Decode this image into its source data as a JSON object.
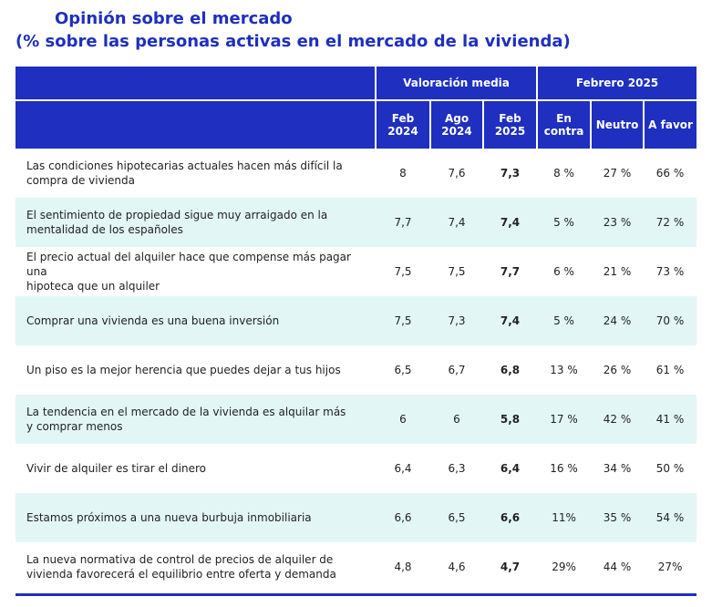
{
  "title": "Opinión sobre el mercado",
  "subtitle": "(% sobre las personas activas en el mercado de la vivienda)",
  "header": {
    "group_valoracion": "Valoración media",
    "group_febrero": "Febrero 2025",
    "columns": [
      {
        "line1": "Feb",
        "line2": "2024"
      },
      {
        "line1": "Ago",
        "line2": "2024"
      },
      {
        "line1": "Feb",
        "line2": "2025"
      },
      {
        "line1": "En",
        "line2": "contra"
      },
      {
        "line1": "Neutro",
        "line2": ""
      },
      {
        "line1": "A favor",
        "line2": ""
      }
    ]
  },
  "rows": [
    {
      "line1": "Las condiciones hipotecarias actuales hacen más difícil la",
      "line2": "compra de vivienda",
      "feb2024": "8",
      "ago2024": "7,6",
      "feb2025": "7,3",
      "contra": "8 %",
      "neutro": "27 %",
      "favor": "66 %"
    },
    {
      "line1": "El sentimiento de propiedad sigue muy arraigado en la",
      "line2": "mentalidad de los españoles",
      "feb2024": "7,7",
      "ago2024": "7,4",
      "feb2025": "7,4",
      "contra": "5 %",
      "neutro": "23 %",
      "favor": "72 %"
    },
    {
      "line1": "El precio actual del alquiler hace que compense más pagar una",
      "line2": "hipoteca que un alquiler",
      "feb2024": "7,5",
      "ago2024": "7,5",
      "feb2025": "7,7",
      "contra": "6 %",
      "neutro": "21 %",
      "favor": "73 %"
    },
    {
      "line1": "Comprar una vivienda es una buena inversión",
      "line2": "",
      "feb2024": "7,5",
      "ago2024": "7,3",
      "feb2025": "7,4",
      "contra": "5 %",
      "neutro": "24 %",
      "favor": "70 %"
    },
    {
      "line1": "Un piso es la mejor herencia que puedes dejar a tus hijos",
      "line2": "",
      "feb2024": "6,5",
      "ago2024": "6,7",
      "feb2025": "6,8",
      "contra": "13 %",
      "neutro": "26 %",
      "favor": "61 %"
    },
    {
      "line1": "La tendencia en el mercado de la vivienda es alquilar más",
      "line2": "y comprar menos",
      "feb2024": "6",
      "ago2024": "6",
      "feb2025": "5,8",
      "contra": "17 %",
      "neutro": "42 %",
      "favor": "41 %"
    },
    {
      "line1": "Vivir de alquiler es tirar el dinero",
      "line2": "",
      "feb2024": "6,4",
      "ago2024": "6,3",
      "feb2025": "6,4",
      "contra": "16 %",
      "neutro": "34 %",
      "favor": "50 %"
    },
    {
      "line1": "Estamos próximos a una nueva burbuja inmobiliaria",
      "line2": "",
      "feb2024": "6,6",
      "ago2024": "6,5",
      "feb2025": "6,6",
      "contra": "11%",
      "neutro": "35 %",
      "favor": "54 %"
    },
    {
      "line1": "La nueva normativa de control de precios de alquiler de",
      "line2": "vivienda favorecerá el equilibrio entre oferta y demanda",
      "feb2024": "4,8",
      "ago2024": "4,6",
      "feb2025": "4,7",
      "contra": "29%",
      "neutro": "44 %",
      "favor": "27%"
    }
  ],
  "colors": {
    "header_blue": "#1f2fbf",
    "row_alt": "#e2f6f6"
  }
}
